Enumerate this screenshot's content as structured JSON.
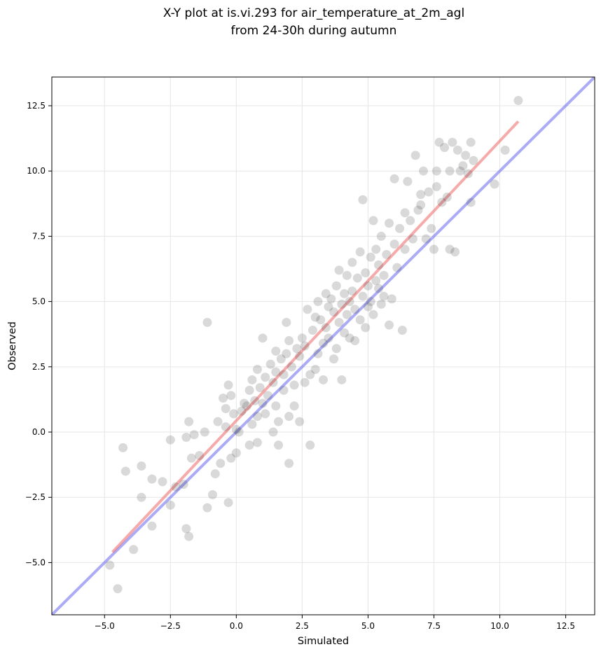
{
  "chart_data": {
    "type": "scatter",
    "title_lines": [
      "X-Y plot at is.vi.293 for air_temperature_at_2m_agl",
      "from 24-30h during autumn"
    ],
    "xlabel": "Simulated",
    "ylabel": "Observed",
    "xlim": [
      -7.0,
      13.6
    ],
    "ylim": [
      -7.0,
      13.6
    ],
    "xticks": [
      -5.0,
      -2.5,
      0.0,
      2.5,
      5.0,
      7.5,
      10.0,
      12.5
    ],
    "yticks": [
      -5.0,
      -2.5,
      0.0,
      2.5,
      5.0,
      7.5,
      10.0,
      12.5
    ],
    "xtick_labels": [
      "−5.0",
      "−2.5",
      "0.0",
      "2.5",
      "5.0",
      "7.5",
      "10.0",
      "12.5"
    ],
    "ytick_labels": [
      "−5.0",
      "−2.5",
      "0.0",
      "2.5",
      "5.0",
      "7.5",
      "10.0",
      "12.5"
    ],
    "grid": true,
    "point_color": "#404040",
    "point_opacity": 0.2,
    "points": [
      [
        -4.8,
        -5.1
      ],
      [
        -4.5,
        -6.0
      ],
      [
        -4.3,
        -0.6
      ],
      [
        -4.2,
        -1.5
      ],
      [
        -3.9,
        -4.5
      ],
      [
        -3.6,
        -1.3
      ],
      [
        -3.6,
        -2.5
      ],
      [
        -3.2,
        -1.8
      ],
      [
        -3.2,
        -3.6
      ],
      [
        -2.8,
        -1.9
      ],
      [
        -2.5,
        -2.8
      ],
      [
        -2.5,
        -0.3
      ],
      [
        -2.3,
        -2.1
      ],
      [
        -2.0,
        -2.0
      ],
      [
        -1.9,
        -0.2
      ],
      [
        -1.9,
        -3.7
      ],
      [
        -1.8,
        -4.0
      ],
      [
        -1.8,
        0.4
      ],
      [
        -1.7,
        -1.0
      ],
      [
        -1.6,
        -0.1
      ],
      [
        -1.4,
        -0.9
      ],
      [
        -1.2,
        0.0
      ],
      [
        -1.1,
        -2.9
      ],
      [
        -1.1,
        4.2
      ],
      [
        -0.9,
        -2.4
      ],
      [
        -0.8,
        -1.6
      ],
      [
        -0.7,
        0.4
      ],
      [
        -0.6,
        -1.2
      ],
      [
        -0.5,
        1.3
      ],
      [
        -0.4,
        0.9
      ],
      [
        -0.4,
        0.2
      ],
      [
        -0.3,
        1.8
      ],
      [
        -0.3,
        -2.7
      ],
      [
        -0.2,
        1.4
      ],
      [
        -0.2,
        -1.0
      ],
      [
        -0.1,
        0.7
      ],
      [
        0.0,
        0.1
      ],
      [
        0.0,
        -0.8
      ],
      [
        0.1,
        0.0
      ],
      [
        0.2,
        0.8
      ],
      [
        0.3,
        1.1
      ],
      [
        0.4,
        1.0
      ],
      [
        0.5,
        -0.5
      ],
      [
        0.5,
        1.6
      ],
      [
        0.6,
        0.3
      ],
      [
        0.6,
        2.0
      ],
      [
        0.7,
        1.2
      ],
      [
        0.8,
        -0.4
      ],
      [
        0.8,
        2.4
      ],
      [
        0.8,
        0.6
      ],
      [
        0.9,
        1.7
      ],
      [
        1.0,
        1.1
      ],
      [
        1.0,
        3.6
      ],
      [
        1.1,
        0.7
      ],
      [
        1.1,
        2.1
      ],
      [
        1.2,
        1.4
      ],
      [
        1.3,
        2.6
      ],
      [
        1.4,
        0.0
      ],
      [
        1.4,
        1.9
      ],
      [
        1.5,
        1.0
      ],
      [
        1.5,
        3.1
      ],
      [
        1.5,
        2.3
      ],
      [
        1.6,
        0.4
      ],
      [
        1.6,
        -0.5
      ],
      [
        1.7,
        2.8
      ],
      [
        1.8,
        1.6
      ],
      [
        1.8,
        2.2
      ],
      [
        1.9,
        4.2
      ],
      [
        1.9,
        3.0
      ],
      [
        2.0,
        -1.2
      ],
      [
        2.0,
        0.6
      ],
      [
        2.0,
        3.5
      ],
      [
        2.1,
        2.5
      ],
      [
        2.2,
        1.0
      ],
      [
        2.2,
        1.8
      ],
      [
        2.3,
        3.2
      ],
      [
        2.4,
        0.4
      ],
      [
        2.4,
        2.9
      ],
      [
        2.5,
        3.6
      ],
      [
        2.6,
        1.9
      ],
      [
        2.6,
        3.3
      ],
      [
        2.7,
        4.7
      ],
      [
        2.8,
        2.2
      ],
      [
        2.8,
        -0.5
      ],
      [
        2.9,
        3.9
      ],
      [
        3.0,
        2.4
      ],
      [
        3.0,
        4.4
      ],
      [
        3.1,
        3.0
      ],
      [
        3.1,
        5.0
      ],
      [
        3.2,
        4.3
      ],
      [
        3.3,
        3.4
      ],
      [
        3.3,
        2.0
      ],
      [
        3.4,
        5.3
      ],
      [
        3.4,
        4.0
      ],
      [
        3.5,
        3.6
      ],
      [
        3.5,
        4.8
      ],
      [
        3.6,
        5.1
      ],
      [
        3.7,
        2.8
      ],
      [
        3.7,
        4.6
      ],
      [
        3.8,
        5.6
      ],
      [
        3.8,
        3.2
      ],
      [
        3.9,
        4.2
      ],
      [
        3.9,
        6.2
      ],
      [
        4.0,
        2.0
      ],
      [
        4.0,
        4.9
      ],
      [
        4.1,
        5.3
      ],
      [
        4.1,
        3.8
      ],
      [
        4.2,
        6.0
      ],
      [
        4.2,
        4.5
      ],
      [
        4.3,
        5.0
      ],
      [
        4.3,
        3.6
      ],
      [
        4.4,
        6.5
      ],
      [
        4.4,
        5.4
      ],
      [
        4.5,
        4.7
      ],
      [
        4.5,
        3.5
      ],
      [
        4.6,
        5.9
      ],
      [
        4.7,
        4.3
      ],
      [
        4.7,
        6.9
      ],
      [
        4.8,
        5.2
      ],
      [
        4.8,
        8.9
      ],
      [
        4.9,
        4.0
      ],
      [
        4.9,
        6.1
      ],
      [
        5.0,
        5.6
      ],
      [
        5.0,
        4.8
      ],
      [
        5.1,
        6.7
      ],
      [
        5.1,
        5.0
      ],
      [
        5.2,
        4.5
      ],
      [
        5.2,
        8.1
      ],
      [
        5.3,
        5.8
      ],
      [
        5.3,
        7.0
      ],
      [
        5.4,
        6.4
      ],
      [
        5.4,
        5.5
      ],
      [
        5.5,
        4.9
      ],
      [
        5.5,
        7.5
      ],
      [
        5.6,
        6.0
      ],
      [
        5.6,
        5.2
      ],
      [
        5.7,
        6.8
      ],
      [
        5.8,
        4.1
      ],
      [
        5.8,
        8.0
      ],
      [
        5.9,
        5.1
      ],
      [
        6.0,
        7.2
      ],
      [
        6.0,
        9.7
      ],
      [
        6.1,
        6.3
      ],
      [
        6.2,
        7.8
      ],
      [
        6.3,
        3.9
      ],
      [
        6.4,
        8.4
      ],
      [
        6.4,
        7.0
      ],
      [
        6.5,
        9.6
      ],
      [
        6.6,
        8.1
      ],
      [
        6.7,
        7.4
      ],
      [
        6.8,
        10.6
      ],
      [
        6.9,
        8.5
      ],
      [
        7.0,
        9.1
      ],
      [
        7.0,
        8.7
      ],
      [
        7.1,
        10.0
      ],
      [
        7.2,
        7.4
      ],
      [
        7.3,
        9.2
      ],
      [
        7.4,
        7.8
      ],
      [
        7.5,
        7.0
      ],
      [
        7.6,
        10.0
      ],
      [
        7.6,
        9.4
      ],
      [
        7.7,
        11.1
      ],
      [
        7.8,
        8.8
      ],
      [
        7.9,
        10.9
      ],
      [
        8.0,
        9.0
      ],
      [
        8.1,
        10.0
      ],
      [
        8.1,
        7.0
      ],
      [
        8.2,
        11.1
      ],
      [
        8.3,
        6.9
      ],
      [
        8.4,
        10.8
      ],
      [
        8.5,
        10.0
      ],
      [
        8.6,
        10.2
      ],
      [
        8.7,
        10.6
      ],
      [
        8.8,
        9.9
      ],
      [
        8.9,
        11.1
      ],
      [
        8.9,
        8.8
      ],
      [
        9.0,
        10.4
      ],
      [
        9.8,
        9.5
      ],
      [
        10.2,
        10.8
      ],
      [
        10.7,
        12.7
      ]
    ],
    "series": [
      {
        "kind": "identity",
        "color": "#6666ee",
        "opacity": 0.55,
        "x": [
          -7.0,
          13.6
        ],
        "y": [
          -7.0,
          13.6
        ]
      },
      {
        "kind": "fit",
        "color": "#ee6666",
        "opacity": 0.55,
        "x": [
          -4.7,
          10.7
        ],
        "y": [
          -4.6,
          11.9
        ]
      }
    ]
  }
}
